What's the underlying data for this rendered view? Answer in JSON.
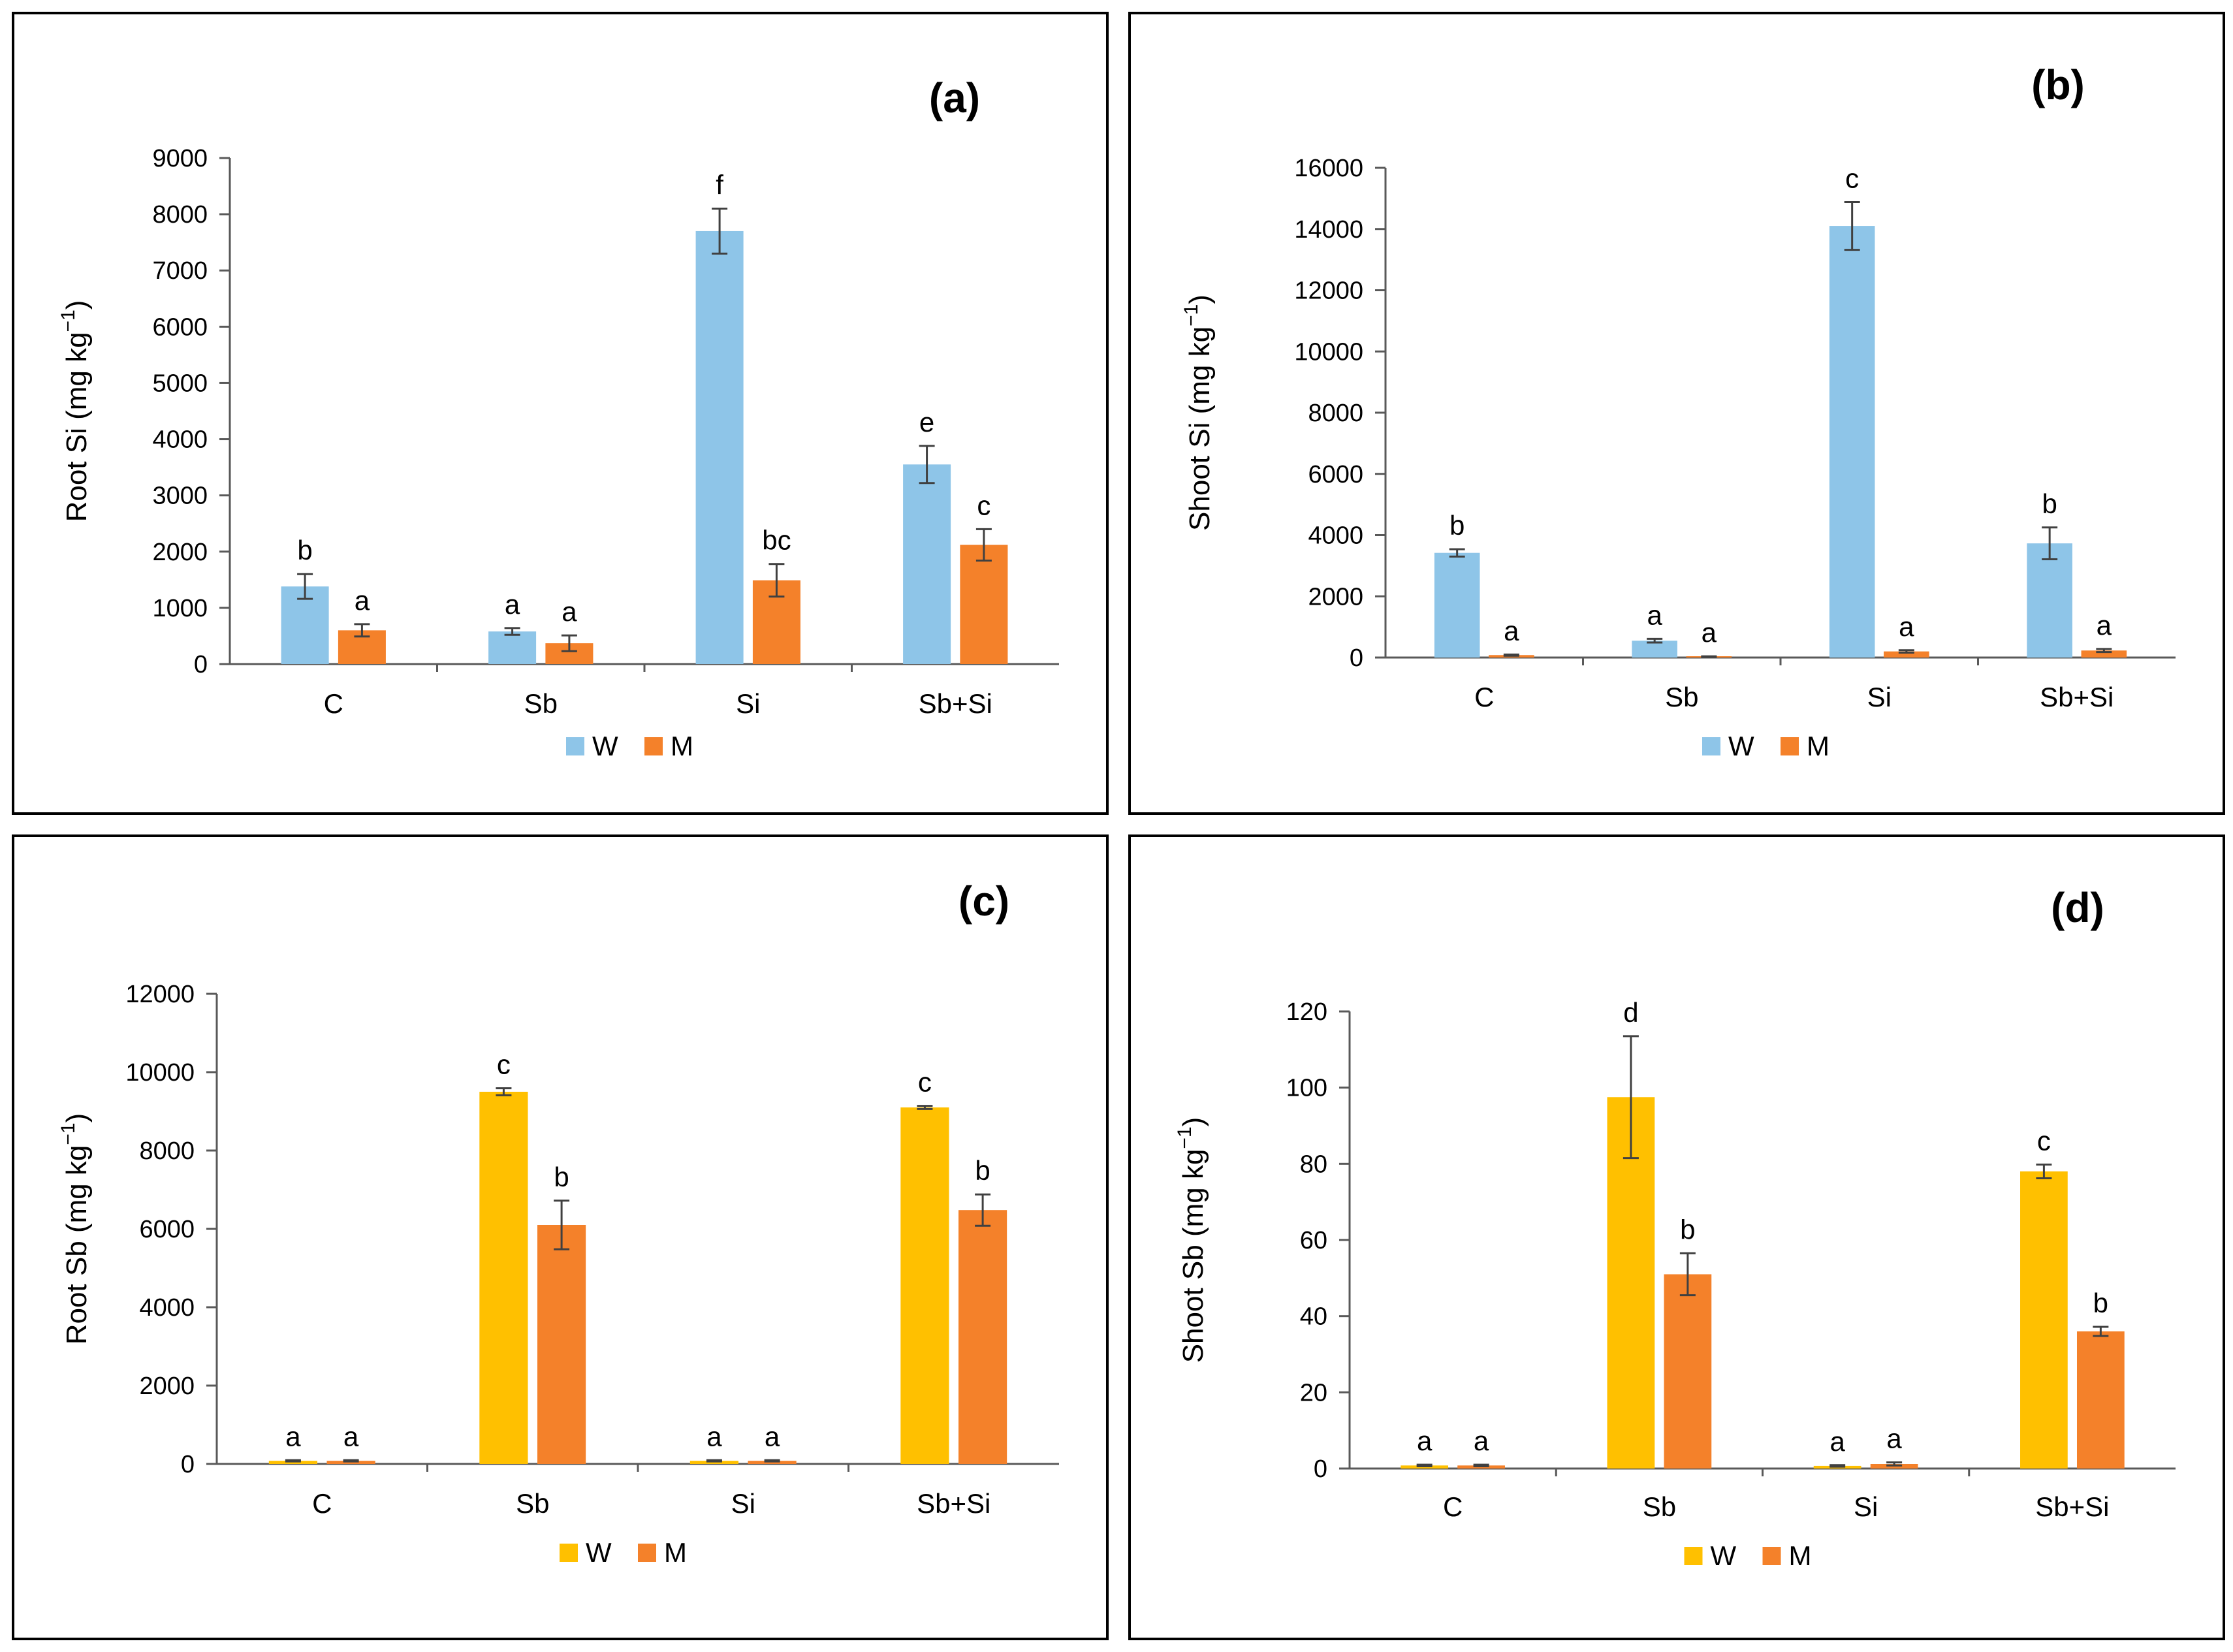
{
  "colors": {
    "W_blue": "#8EC5E8",
    "W_yellow": "#FFC000",
    "M": "#F4812A",
    "axis": "#595959",
    "error": "#404040"
  },
  "chart_data": [
    {
      "type": "bar",
      "panel_label": "(a)",
      "ylabel_main": "Root Si (mg  kg",
      "ylabel_sup": "−1",
      "ylabel_close": ")",
      "ylim": [
        0,
        9000
      ],
      "yticks": [
        0,
        1000,
        2000,
        3000,
        4000,
        5000,
        6000,
        7000,
        8000,
        9000
      ],
      "categories": [
        "C",
        "Sb",
        "Si",
        "Sb+Si"
      ],
      "legend": [
        "W",
        "M"
      ],
      "series": [
        {
          "name": "W",
          "color": "#8EC5E8",
          "values": [
            1380,
            580,
            7700,
            3550
          ],
          "errors": [
            220,
            60,
            400,
            330
          ],
          "letters": [
            "b",
            "a",
            "f",
            "e"
          ]
        },
        {
          "name": "M",
          "color": "#F4812A",
          "values": [
            600,
            370,
            1490,
            2120
          ],
          "errors": [
            110,
            140,
            290,
            280
          ],
          "letters": [
            "a",
            "a",
            "bc",
            "c"
          ]
        }
      ]
    },
    {
      "type": "bar",
      "panel_label": "(b)",
      "ylabel_main": "Shoot Si (mg kg",
      "ylabel_sup": "−1",
      "ylabel_close": ")",
      "ylim": [
        0,
        16000
      ],
      "yticks": [
        0,
        2000,
        4000,
        6000,
        8000,
        10000,
        12000,
        14000,
        16000
      ],
      "categories": [
        "C",
        "Sb",
        "Si",
        "Sb+Si"
      ],
      "legend": [
        "W",
        "M"
      ],
      "series": [
        {
          "name": "W",
          "color": "#8EC5E8",
          "values": [
            3420,
            550,
            14100,
            3730
          ],
          "errors": [
            120,
            60,
            780,
            520
          ],
          "letters": [
            "b",
            "a",
            "c",
            "b"
          ]
        },
        {
          "name": "M",
          "color": "#F4812A",
          "values": [
            80,
            30,
            200,
            230
          ],
          "errors": [
            20,
            10,
            40,
            50
          ],
          "letters": [
            "a",
            "a",
            "a",
            "a"
          ]
        }
      ]
    },
    {
      "type": "bar",
      "panel_label": "(c)",
      "ylabel_main": "Root Sb (mg kg",
      "ylabel_sup": "−1",
      "ylabel_close": ")",
      "ylim": [
        0,
        12000
      ],
      "yticks": [
        0,
        2000,
        4000,
        6000,
        8000,
        10000,
        12000
      ],
      "categories": [
        "C",
        "Sb",
        "Si",
        "Sb+Si"
      ],
      "legend": [
        "W",
        "M"
      ],
      "series": [
        {
          "name": "W",
          "color": "#FFC000",
          "values": [
            80,
            9500,
            80,
            9100
          ],
          "errors": [
            15,
            90,
            15,
            40
          ],
          "letters": [
            "a",
            "c",
            "a",
            "c"
          ]
        },
        {
          "name": "M",
          "color": "#F4812A",
          "values": [
            80,
            6100,
            80,
            6480
          ],
          "errors": [
            15,
            620,
            15,
            400
          ],
          "letters": [
            "a",
            "b",
            "a",
            "b"
          ]
        }
      ]
    },
    {
      "type": "bar",
      "panel_label": "(d)",
      "ylabel_main": "Shoot Sb (mg kg",
      "ylabel_sup": "−1",
      "ylabel_close": ")",
      "ylim": [
        0,
        120
      ],
      "yticks": [
        0,
        20,
        40,
        60,
        80,
        100,
        120
      ],
      "categories": [
        "C",
        "Sb",
        "Si",
        "Sb+Si"
      ],
      "legend": [
        "W",
        "M"
      ],
      "series": [
        {
          "name": "W",
          "color": "#FFC000",
          "values": [
            0.8,
            97.5,
            0.7,
            78
          ],
          "errors": [
            0.2,
            16,
            0.2,
            1.8
          ],
          "letters": [
            "a",
            "d",
            "a",
            "c"
          ]
        },
        {
          "name": "M",
          "color": "#F4812A",
          "values": [
            0.8,
            51,
            1.2,
            36
          ],
          "errors": [
            0.2,
            5.5,
            0.4,
            1.2
          ],
          "letters": [
            "a",
            "b",
            "a",
            "b"
          ]
        }
      ]
    }
  ]
}
